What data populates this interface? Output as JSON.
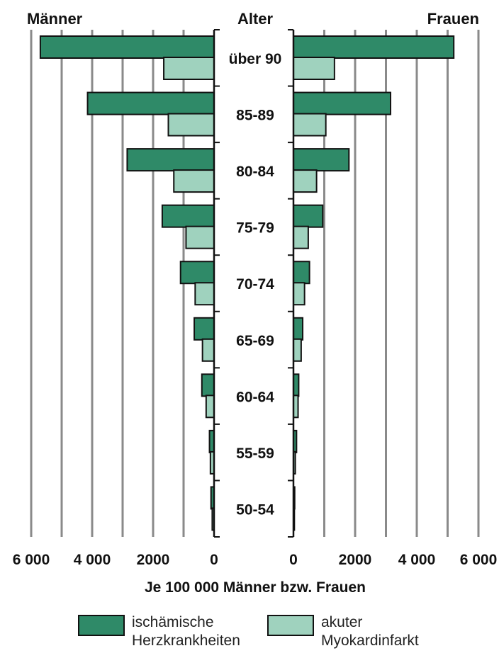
{
  "chart_data": {
    "type": "bar",
    "subtype": "population-pyramid",
    "title_left": "Männer",
    "title_center": "Alter",
    "title_right": "Frauen",
    "xlabel": "Je 100 000 Männer bzw. Frauen",
    "ylabel": "",
    "xlim": [
      0,
      6000
    ],
    "x_ticks_left": [
      "6 000",
      "4 000",
      "2000",
      "0"
    ],
    "x_ticks_right": [
      "0",
      "2000",
      "4 000",
      "6 000"
    ],
    "grid": true,
    "categories": [
      "über 90",
      "85-89",
      "80-84",
      "75-79",
      "70-74",
      "65-69",
      "60-64",
      "55-59",
      "50-54"
    ],
    "series": [
      {
        "name": "ischämische Herzkrankheiten",
        "color": "#2f8a68",
        "men": [
          5700,
          4150,
          2850,
          1700,
          1100,
          650,
          400,
          150,
          100
        ],
        "women": [
          5200,
          3150,
          1800,
          950,
          520,
          300,
          170,
          100,
          40
        ]
      },
      {
        "name": "akuter Myokardinfarkt",
        "color": "#9fd2be",
        "men": [
          1650,
          1500,
          1320,
          920,
          620,
          380,
          260,
          120,
          60
        ],
        "women": [
          1330,
          1050,
          750,
          480,
          360,
          250,
          150,
          60,
          30
        ]
      }
    ]
  },
  "legend": [
    {
      "label_line1": "ischämische",
      "label_line2": "Herzkrankheiten",
      "color": "#2f8a68"
    },
    {
      "label_line1": "akuter",
      "label_line2": "Myokardinfarkt",
      "color": "#9fd2be"
    }
  ]
}
